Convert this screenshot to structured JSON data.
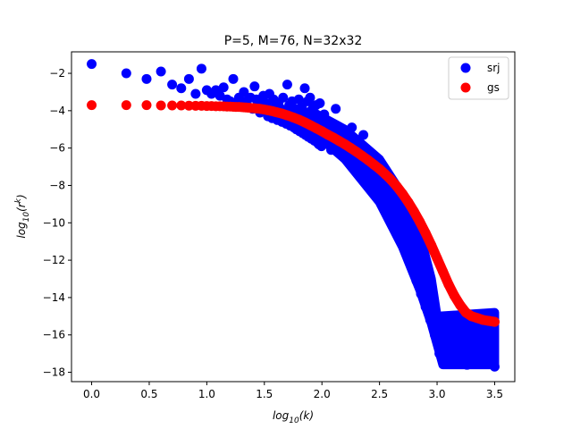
{
  "chart_data": {
    "type": "scatter",
    "title": "P=5, M=76, N=32x32",
    "xlabel_base": "log",
    "xlabel_sub": "10",
    "xlabel_arg": "(k)",
    "ylabel_base": "log",
    "ylabel_sub": "10",
    "ylabel_arg_open": "(r",
    "ylabel_sup": "k",
    "ylabel_arg_close": ")",
    "xlim": [
      -0.175,
      3.675
    ],
    "ylim": [
      -18.5,
      -0.85
    ],
    "xticks": [
      0.0,
      0.5,
      1.0,
      1.5,
      2.0,
      2.5,
      3.0,
      3.5
    ],
    "xtick_labels": [
      "0.0",
      "0.5",
      "1.0",
      "1.5",
      "2.0",
      "2.5",
      "3.0",
      "3.5"
    ],
    "yticks": [
      -2,
      -4,
      -6,
      -8,
      -10,
      -12,
      -14,
      -16,
      -18
    ],
    "ytick_labels": [
      "−2",
      "−4",
      "−6",
      "−8",
      "−10",
      "−12",
      "−14",
      "−16",
      "−18"
    ],
    "grid": false,
    "legend_position": "top-right",
    "series": [
      {
        "name": "srj",
        "color": "#0000ff",
        "points": [
          [
            0.0,
            -1.5
          ],
          [
            0.301,
            -2.0
          ],
          [
            0.477,
            -2.3
          ],
          [
            0.602,
            -1.9
          ],
          [
            0.699,
            -2.6
          ],
          [
            0.778,
            -2.8
          ],
          [
            0.845,
            -2.3
          ],
          [
            0.903,
            -3.1
          ],
          [
            0.954,
            -1.75
          ],
          [
            1.0,
            -2.9
          ],
          [
            1.041,
            -3.1
          ],
          [
            1.079,
            -2.9
          ],
          [
            1.114,
            -3.2
          ],
          [
            1.146,
            -2.75
          ],
          [
            1.176,
            -3.4
          ],
          [
            1.204,
            -3.5
          ],
          [
            1.23,
            -2.3
          ],
          [
            1.255,
            -3.6
          ],
          [
            1.279,
            -3.3
          ],
          [
            1.301,
            -3.6
          ],
          [
            1.322,
            -3.0
          ],
          [
            1.342,
            -3.5
          ],
          [
            1.362,
            -3.8
          ],
          [
            1.38,
            -3.3
          ],
          [
            1.398,
            -3.9
          ],
          [
            1.415,
            -2.7
          ],
          [
            1.431,
            -3.4
          ],
          [
            1.447,
            -3.8
          ],
          [
            1.462,
            -4.1
          ],
          [
            1.477,
            -3.5
          ],
          [
            1.491,
            -3.2
          ],
          [
            1.505,
            -4.0
          ],
          [
            1.519,
            -3.6
          ],
          [
            1.531,
            -4.3
          ],
          [
            1.544,
            -3.1
          ],
          [
            1.556,
            -3.9
          ],
          [
            1.568,
            -4.4
          ],
          [
            1.58,
            -3.4
          ],
          [
            1.591,
            -4.2
          ],
          [
            1.602,
            -3.8
          ],
          [
            1.613,
            -4.5
          ],
          [
            1.623,
            -3.6
          ],
          [
            1.633,
            -4.3
          ],
          [
            1.643,
            -3.9
          ],
          [
            1.653,
            -4.6
          ],
          [
            1.663,
            -3.3
          ],
          [
            1.672,
            -4.4
          ],
          [
            1.681,
            -4.0
          ],
          [
            1.69,
            -4.7
          ],
          [
            1.699,
            -2.6
          ],
          [
            1.708,
            -4.2
          ],
          [
            1.716,
            -3.7
          ],
          [
            1.724,
            -4.8
          ],
          [
            1.732,
            -4.1
          ],
          [
            1.74,
            -3.5
          ],
          [
            1.748,
            -4.5
          ],
          [
            1.756,
            -4.9
          ],
          [
            1.763,
            -3.9
          ],
          [
            1.771,
            -4.3
          ],
          [
            1.778,
            -5.0
          ],
          [
            1.785,
            -4.0
          ],
          [
            1.792,
            -4.6
          ],
          [
            1.799,
            -3.4
          ],
          [
            1.806,
            -5.1
          ],
          [
            1.813,
            -4.2
          ],
          [
            1.82,
            -4.7
          ],
          [
            1.826,
            -3.8
          ],
          [
            1.833,
            -5.2
          ],
          [
            1.839,
            -4.4
          ],
          [
            1.845,
            -4.9
          ],
          [
            1.851,
            -2.8
          ],
          [
            1.857,
            -5.3
          ],
          [
            1.863,
            -4.1
          ],
          [
            1.869,
            -4.6
          ],
          [
            1.875,
            -3.5
          ],
          [
            1.881,
            -5.4
          ],
          [
            1.886,
            -4.3
          ],
          [
            1.892,
            -5.0
          ],
          [
            1.897,
            -3.3
          ],
          [
            1.903,
            -4.8
          ],
          [
            1.908,
            -5.5
          ],
          [
            1.914,
            -4.5
          ],
          [
            1.919,
            -3.9
          ],
          [
            1.924,
            -5.1
          ],
          [
            1.929,
            -4.7
          ],
          [
            1.934,
            -5.6
          ],
          [
            1.94,
            -4.2
          ],
          [
            1.944,
            -5.3
          ],
          [
            1.949,
            -3.7
          ],
          [
            1.954,
            -4.9
          ],
          [
            1.959,
            -5.7
          ],
          [
            1.964,
            -4.4
          ],
          [
            1.968,
            -5.2
          ],
          [
            1.973,
            -5.8
          ],
          [
            1.978,
            -4.6
          ],
          [
            1.982,
            -3.6
          ],
          [
            1.987,
            -5.4
          ],
          [
            1.991,
            -4.8
          ],
          [
            1.996,
            -5.9
          ],
          [
            2.0,
            -5.0
          ],
          [
            2.02,
            -4.2
          ],
          [
            2.04,
            -5.6
          ],
          [
            2.06,
            -4.6
          ],
          [
            2.08,
            -6.1
          ],
          [
            2.1,
            -5.2
          ],
          [
            2.12,
            -3.9
          ],
          [
            2.14,
            -5.8
          ],
          [
            2.16,
            -5.0
          ],
          [
            2.18,
            -6.3
          ],
          [
            2.2,
            -5.4
          ],
          [
            2.22,
            -6.6
          ],
          [
            2.24,
            -5.7
          ],
          [
            2.26,
            -4.9
          ],
          [
            2.28,
            -6.8
          ],
          [
            2.3,
            -5.9
          ],
          [
            2.32,
            -7.1
          ],
          [
            2.34,
            -6.2
          ],
          [
            2.36,
            -5.3
          ],
          [
            2.38,
            -7.4
          ],
          [
            2.4,
            -6.4
          ],
          [
            2.42,
            -7.8
          ],
          [
            2.44,
            -6.8
          ],
          [
            2.46,
            -8.2
          ],
          [
            2.48,
            -7.2
          ],
          [
            2.5,
            -8.6
          ],
          [
            2.52,
            -7.6
          ],
          [
            2.54,
            -9.0
          ],
          [
            2.56,
            -8.1
          ],
          [
            2.58,
            -9.5
          ],
          [
            2.6,
            -8.6
          ],
          [
            2.62,
            -10.0
          ],
          [
            2.64,
            -9.1
          ],
          [
            2.66,
            -10.6
          ],
          [
            2.68,
            -9.7
          ],
          [
            2.7,
            -11.2
          ],
          [
            2.72,
            -10.3
          ],
          [
            2.74,
            -11.8
          ],
          [
            2.76,
            -10.9
          ],
          [
            2.78,
            -12.4
          ],
          [
            2.8,
            -11.6
          ],
          [
            2.82,
            -13.1
          ],
          [
            2.84,
            -12.3
          ],
          [
            2.86,
            -13.8
          ],
          [
            2.88,
            -13.0
          ],
          [
            2.9,
            -14.5
          ],
          [
            2.92,
            -13.8
          ],
          [
            2.94,
            -15.2
          ],
          [
            2.96,
            -14.6
          ],
          [
            2.98,
            -16.0
          ],
          [
            3.0,
            -15.4
          ],
          [
            3.02,
            -17.0
          ],
          [
            3.04,
            -15.8
          ],
          [
            3.06,
            -16.6
          ],
          [
            3.08,
            -17.3
          ],
          [
            3.1,
            -15.5
          ],
          [
            3.12,
            -16.9
          ],
          [
            3.14,
            -17.5
          ],
          [
            3.16,
            -15.7
          ],
          [
            3.18,
            -16.3
          ],
          [
            3.2,
            -17.1
          ],
          [
            3.22,
            -15.3
          ],
          [
            3.24,
            -16.7
          ],
          [
            3.26,
            -17.6
          ],
          [
            3.28,
            -15.9
          ],
          [
            3.3,
            -16.5
          ],
          [
            3.32,
            -17.2
          ],
          [
            3.34,
            -15.4
          ],
          [
            3.36,
            -16.8
          ],
          [
            3.38,
            -17.4
          ],
          [
            3.4,
            -15.6
          ],
          [
            3.42,
            -16.2
          ],
          [
            3.44,
            -17.0
          ],
          [
            3.46,
            -15.8
          ],
          [
            3.48,
            -16.6
          ],
          [
            3.5,
            -17.7
          ]
        ],
        "band": {
          "lower_edge": [
            [
              1.9,
              -5.0
            ],
            [
              2.2,
              -6.6
            ],
            [
              2.5,
              -8.9
            ],
            [
              2.7,
              -11.3
            ],
            [
              2.85,
              -13.6
            ],
            [
              2.95,
              -15.4
            ],
            [
              3.05,
              -17.6
            ],
            [
              3.5,
              -17.6
            ]
          ],
          "upper_edge": [
            [
              1.9,
              -4.0
            ],
            [
              2.2,
              -5.0
            ],
            [
              2.5,
              -6.6
            ],
            [
              2.7,
              -8.5
            ],
            [
              2.85,
              -10.6
            ],
            [
              2.95,
              -13.0
            ],
            [
              3.0,
              -15.0
            ],
            [
              3.5,
              -14.8
            ]
          ]
        }
      },
      {
        "name": "gs",
        "color": "#ff0000",
        "points": [
          [
            0.0,
            -3.7
          ],
          [
            0.301,
            -3.7
          ],
          [
            0.477,
            -3.7
          ],
          [
            0.602,
            -3.72
          ],
          [
            0.699,
            -3.72
          ],
          [
            0.778,
            -3.72
          ],
          [
            0.845,
            -3.73
          ],
          [
            0.903,
            -3.74
          ],
          [
            0.954,
            -3.74
          ],
          [
            1.0,
            -3.75
          ],
          [
            1.041,
            -3.75
          ],
          [
            1.079,
            -3.76
          ],
          [
            1.114,
            -3.76
          ],
          [
            1.146,
            -3.77
          ],
          [
            1.176,
            -3.78
          ],
          [
            1.204,
            -3.78
          ],
          [
            1.23,
            -3.79
          ],
          [
            1.255,
            -3.8
          ],
          [
            1.279,
            -3.8
          ],
          [
            1.301,
            -3.81
          ],
          [
            1.322,
            -3.82
          ],
          [
            1.342,
            -3.83
          ],
          [
            1.362,
            -3.84
          ],
          [
            1.38,
            -3.85
          ],
          [
            1.398,
            -3.86
          ],
          [
            1.415,
            -3.87
          ],
          [
            1.431,
            -3.88
          ],
          [
            1.447,
            -3.89
          ],
          [
            1.462,
            -3.9
          ],
          [
            1.477,
            -3.92
          ],
          [
            1.491,
            -3.93
          ],
          [
            1.505,
            -3.95
          ],
          [
            1.519,
            -3.96
          ],
          [
            1.531,
            -3.98
          ],
          [
            1.544,
            -3.99
          ],
          [
            1.556,
            -4.01
          ],
          [
            1.568,
            -4.02
          ],
          [
            1.58,
            -4.04
          ],
          [
            1.591,
            -4.06
          ],
          [
            1.602,
            -4.08
          ],
          [
            1.65,
            -4.15
          ],
          [
            1.7,
            -4.25
          ],
          [
            1.75,
            -4.36
          ],
          [
            1.8,
            -4.48
          ],
          [
            1.85,
            -4.62
          ],
          [
            1.9,
            -4.78
          ],
          [
            1.95,
            -4.94
          ],
          [
            2.0,
            -5.1
          ],
          [
            2.05,
            -5.28
          ],
          [
            2.1,
            -5.44
          ],
          [
            2.15,
            -5.62
          ],
          [
            2.2,
            -5.8
          ],
          [
            2.25,
            -6.0
          ],
          [
            2.3,
            -6.2
          ],
          [
            2.35,
            -6.42
          ],
          [
            2.4,
            -6.64
          ],
          [
            2.45,
            -6.88
          ],
          [
            2.5,
            -7.12
          ],
          [
            2.55,
            -7.4
          ],
          [
            2.6,
            -7.7
          ],
          [
            2.65,
            -8.05
          ],
          [
            2.7,
            -8.45
          ],
          [
            2.75,
            -8.9
          ],
          [
            2.8,
            -9.4
          ],
          [
            2.85,
            -9.95
          ],
          [
            2.9,
            -10.55
          ],
          [
            2.95,
            -11.2
          ],
          [
            3.0,
            -11.9
          ],
          [
            3.05,
            -12.6
          ],
          [
            3.1,
            -13.3
          ],
          [
            3.15,
            -13.9
          ],
          [
            3.2,
            -14.4
          ],
          [
            3.25,
            -14.8
          ],
          [
            3.3,
            -15.0
          ],
          [
            3.35,
            -15.1
          ],
          [
            3.4,
            -15.2
          ],
          [
            3.45,
            -15.25
          ],
          [
            3.5,
            -15.3
          ]
        ]
      }
    ]
  }
}
